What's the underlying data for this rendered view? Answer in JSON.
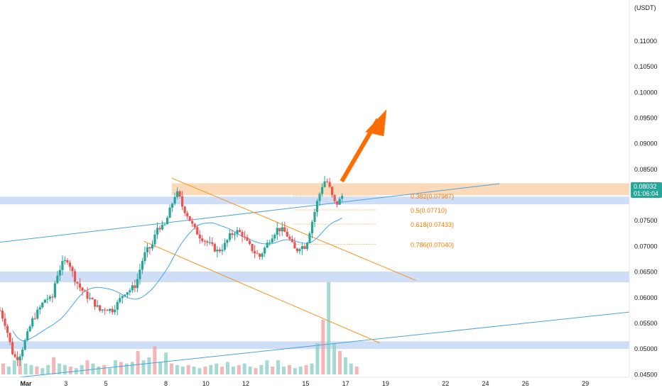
{
  "chart_data": {
    "type": "candlestick",
    "currency": "USDT",
    "price": {
      "last": "0.08032",
      "countdown": "01:06:04",
      "ylim": [
        0.0445,
        0.118
      ]
    },
    "y_ticks": [
      "0.11000",
      "0.10500",
      "0.10000",
      "0.09500",
      "0.09000",
      "0.08500",
      "0.07500",
      "0.07000",
      "0.06500",
      "0.06000",
      "0.05500",
      "0.05000",
      "0.04500"
    ],
    "x_ticks": [
      {
        "label": "Mar",
        "day": 1
      },
      {
        "label": "3",
        "day": 3
      },
      {
        "label": "5",
        "day": 5
      },
      {
        "label": "8",
        "day": 8
      },
      {
        "label": "10",
        "day": 10
      },
      {
        "label": "12",
        "day": 12
      },
      {
        "label": "15",
        "day": 15
      },
      {
        "label": "17",
        "day": 17
      },
      {
        "label": "19",
        "day": 19
      },
      {
        "label": "22",
        "day": 22
      },
      {
        "label": "24",
        "day": 24
      },
      {
        "label": "26",
        "day": 26
      },
      {
        "label": "29",
        "day": 29
      }
    ],
    "candle_anchors": [
      [
        0.0,
        0.0575
      ],
      [
        0.3,
        0.0545
      ],
      [
        0.6,
        0.0495
      ],
      [
        0.8,
        0.048
      ],
      [
        1.0,
        0.049
      ],
      [
        1.3,
        0.052
      ],
      [
        1.6,
        0.0555
      ],
      [
        2.0,
        0.058
      ],
      [
        2.3,
        0.06
      ],
      [
        2.6,
        0.0595
      ],
      [
        2.8,
        0.064
      ],
      [
        3.1,
        0.0665
      ],
      [
        3.4,
        0.0675
      ],
      [
        3.7,
        0.064
      ],
      [
        4.0,
        0.062
      ],
      [
        4.3,
        0.0605
      ],
      [
        4.7,
        0.059
      ],
      [
        5.0,
        0.0575
      ],
      [
        5.3,
        0.058
      ],
      [
        5.6,
        0.0575
      ],
      [
        5.9,
        0.059
      ],
      [
        6.2,
        0.061
      ],
      [
        6.5,
        0.0615
      ],
      [
        6.8,
        0.0625
      ],
      [
        7.1,
        0.067
      ],
      [
        7.3,
        0.069
      ],
      [
        7.6,
        0.07
      ],
      [
        7.9,
        0.074
      ],
      [
        8.2,
        0.0735
      ],
      [
        8.5,
        0.077
      ],
      [
        8.8,
        0.0805
      ],
      [
        8.95,
        0.08
      ],
      [
        9.1,
        0.078
      ],
      [
        9.4,
        0.076
      ],
      [
        9.7,
        0.0735
      ],
      [
        10.0,
        0.072
      ],
      [
        10.3,
        0.071
      ],
      [
        10.6,
        0.07
      ],
      [
        10.9,
        0.069
      ],
      [
        11.2,
        0.07
      ],
      [
        11.5,
        0.072
      ],
      [
        11.8,
        0.073
      ],
      [
        12.1,
        0.0725
      ],
      [
        12.4,
        0.0705
      ],
      [
        12.7,
        0.069
      ],
      [
        13.0,
        0.068
      ],
      [
        13.3,
        0.07
      ],
      [
        13.6,
        0.072
      ],
      [
        13.9,
        0.0735
      ],
      [
        14.2,
        0.073
      ],
      [
        14.4,
        0.072
      ],
      [
        14.6,
        0.0705
      ],
      [
        14.8,
        0.069
      ],
      [
        15.0,
        0.07
      ],
      [
        15.3,
        0.07
      ],
      [
        15.6,
        0.0745
      ],
      [
        15.9,
        0.079
      ],
      [
        16.2,
        0.0828
      ],
      [
        16.4,
        0.0825
      ],
      [
        16.6,
        0.08
      ],
      [
        16.8,
        0.078
      ],
      [
        17.0,
        0.079
      ],
      [
        17.2,
        0.0803
      ]
    ],
    "volume_anchors": [
      [
        0,
        14
      ],
      [
        1,
        10
      ],
      [
        2,
        18
      ],
      [
        3,
        20
      ],
      [
        4,
        14
      ],
      [
        5,
        12
      ],
      [
        6,
        10
      ],
      [
        7,
        8
      ],
      [
        8,
        12
      ],
      [
        9,
        22
      ],
      [
        10,
        14
      ],
      [
        11,
        12
      ],
      [
        12,
        10
      ],
      [
        13,
        8
      ],
      [
        14,
        12
      ],
      [
        15,
        18
      ],
      [
        16,
        14
      ],
      [
        17,
        10
      ],
      [
        18,
        12
      ],
      [
        19,
        8
      ],
      [
        20,
        18
      ],
      [
        21,
        16
      ],
      [
        22,
        14
      ],
      [
        23,
        16
      ],
      [
        24,
        30
      ],
      [
        25,
        18
      ],
      [
        26,
        22
      ],
      [
        27,
        36
      ],
      [
        28,
        16
      ],
      [
        29,
        28
      ],
      [
        30,
        14
      ],
      [
        31,
        12
      ],
      [
        32,
        10
      ],
      [
        33,
        12
      ],
      [
        34,
        10
      ],
      [
        35,
        8
      ],
      [
        36,
        10
      ],
      [
        37,
        12
      ],
      [
        38,
        14
      ],
      [
        39,
        10
      ],
      [
        40,
        16
      ],
      [
        41,
        10
      ],
      [
        42,
        12
      ],
      [
        43,
        14
      ],
      [
        44,
        10
      ],
      [
        45,
        8
      ],
      [
        46,
        12
      ],
      [
        47,
        18
      ],
      [
        48,
        10
      ],
      [
        49,
        18
      ],
      [
        50,
        10
      ],
      [
        51,
        12
      ],
      [
        52,
        8
      ],
      [
        53,
        10
      ],
      [
        54,
        12
      ],
      [
        55,
        14
      ],
      [
        56,
        40
      ],
      [
        57,
        70
      ],
      [
        58,
        118
      ],
      [
        59,
        40
      ],
      [
        60,
        30
      ],
      [
        61,
        22
      ],
      [
        62,
        14
      ],
      [
        63,
        10
      ]
    ],
    "fib_levels": [
      {
        "ratio": "0.382",
        "value": "0.07987",
        "price": 0.07987
      },
      {
        "ratio": "0.5",
        "value": "0.07710",
        "price": 0.0771
      },
      {
        "ratio": "0.618",
        "value": "0.07433",
        "price": 0.07433
      },
      {
        "ratio": "0.786",
        "value": "0.07040",
        "price": 0.0704
      }
    ],
    "zones": [
      {
        "type": "resistance",
        "low": 0.08,
        "high": 0.0823,
        "from_day": 8.6,
        "to_day": 31.5
      },
      {
        "type": "support",
        "low": 0.0782,
        "high": 0.0797,
        "from_day": 0,
        "to_day": 31.5
      },
      {
        "type": "support",
        "low": 0.063,
        "high": 0.0651,
        "from_day": 0,
        "to_day": 31.5
      },
      {
        "type": "support",
        "low": 0.05,
        "high": 0.0515,
        "from_day": 0,
        "to_day": 31.5
      }
    ],
    "trendlines": [
      {
        "color": "#4aa3df",
        "from": [
          0,
          0.0708
        ],
        "to": [
          25,
          0.0822
        ]
      },
      {
        "color": "#4aa3df",
        "from": [
          0,
          0.0441
        ],
        "to": [
          31.5,
          0.0572
        ]
      },
      {
        "color": "#f7931a",
        "from": [
          8.6,
          0.0833
        ],
        "to": [
          20.8,
          0.0634
        ]
      },
      {
        "color": "#f7931a",
        "from": [
          7.2,
          0.071
        ],
        "to": [
          19.0,
          0.0512
        ]
      }
    ],
    "arrow": {
      "from": [
        17.0,
        0.0835
      ],
      "to": [
        18.0,
        0.0945
      ],
      "color": "#ff6d00"
    },
    "colors": {
      "up": "#26a69a",
      "down": "#ef5350",
      "ma": "#42a5f5",
      "zone_blue": "#c5d8f5",
      "zone_orange": "#fbd3ad",
      "price_tag": "#26a69a"
    }
  }
}
